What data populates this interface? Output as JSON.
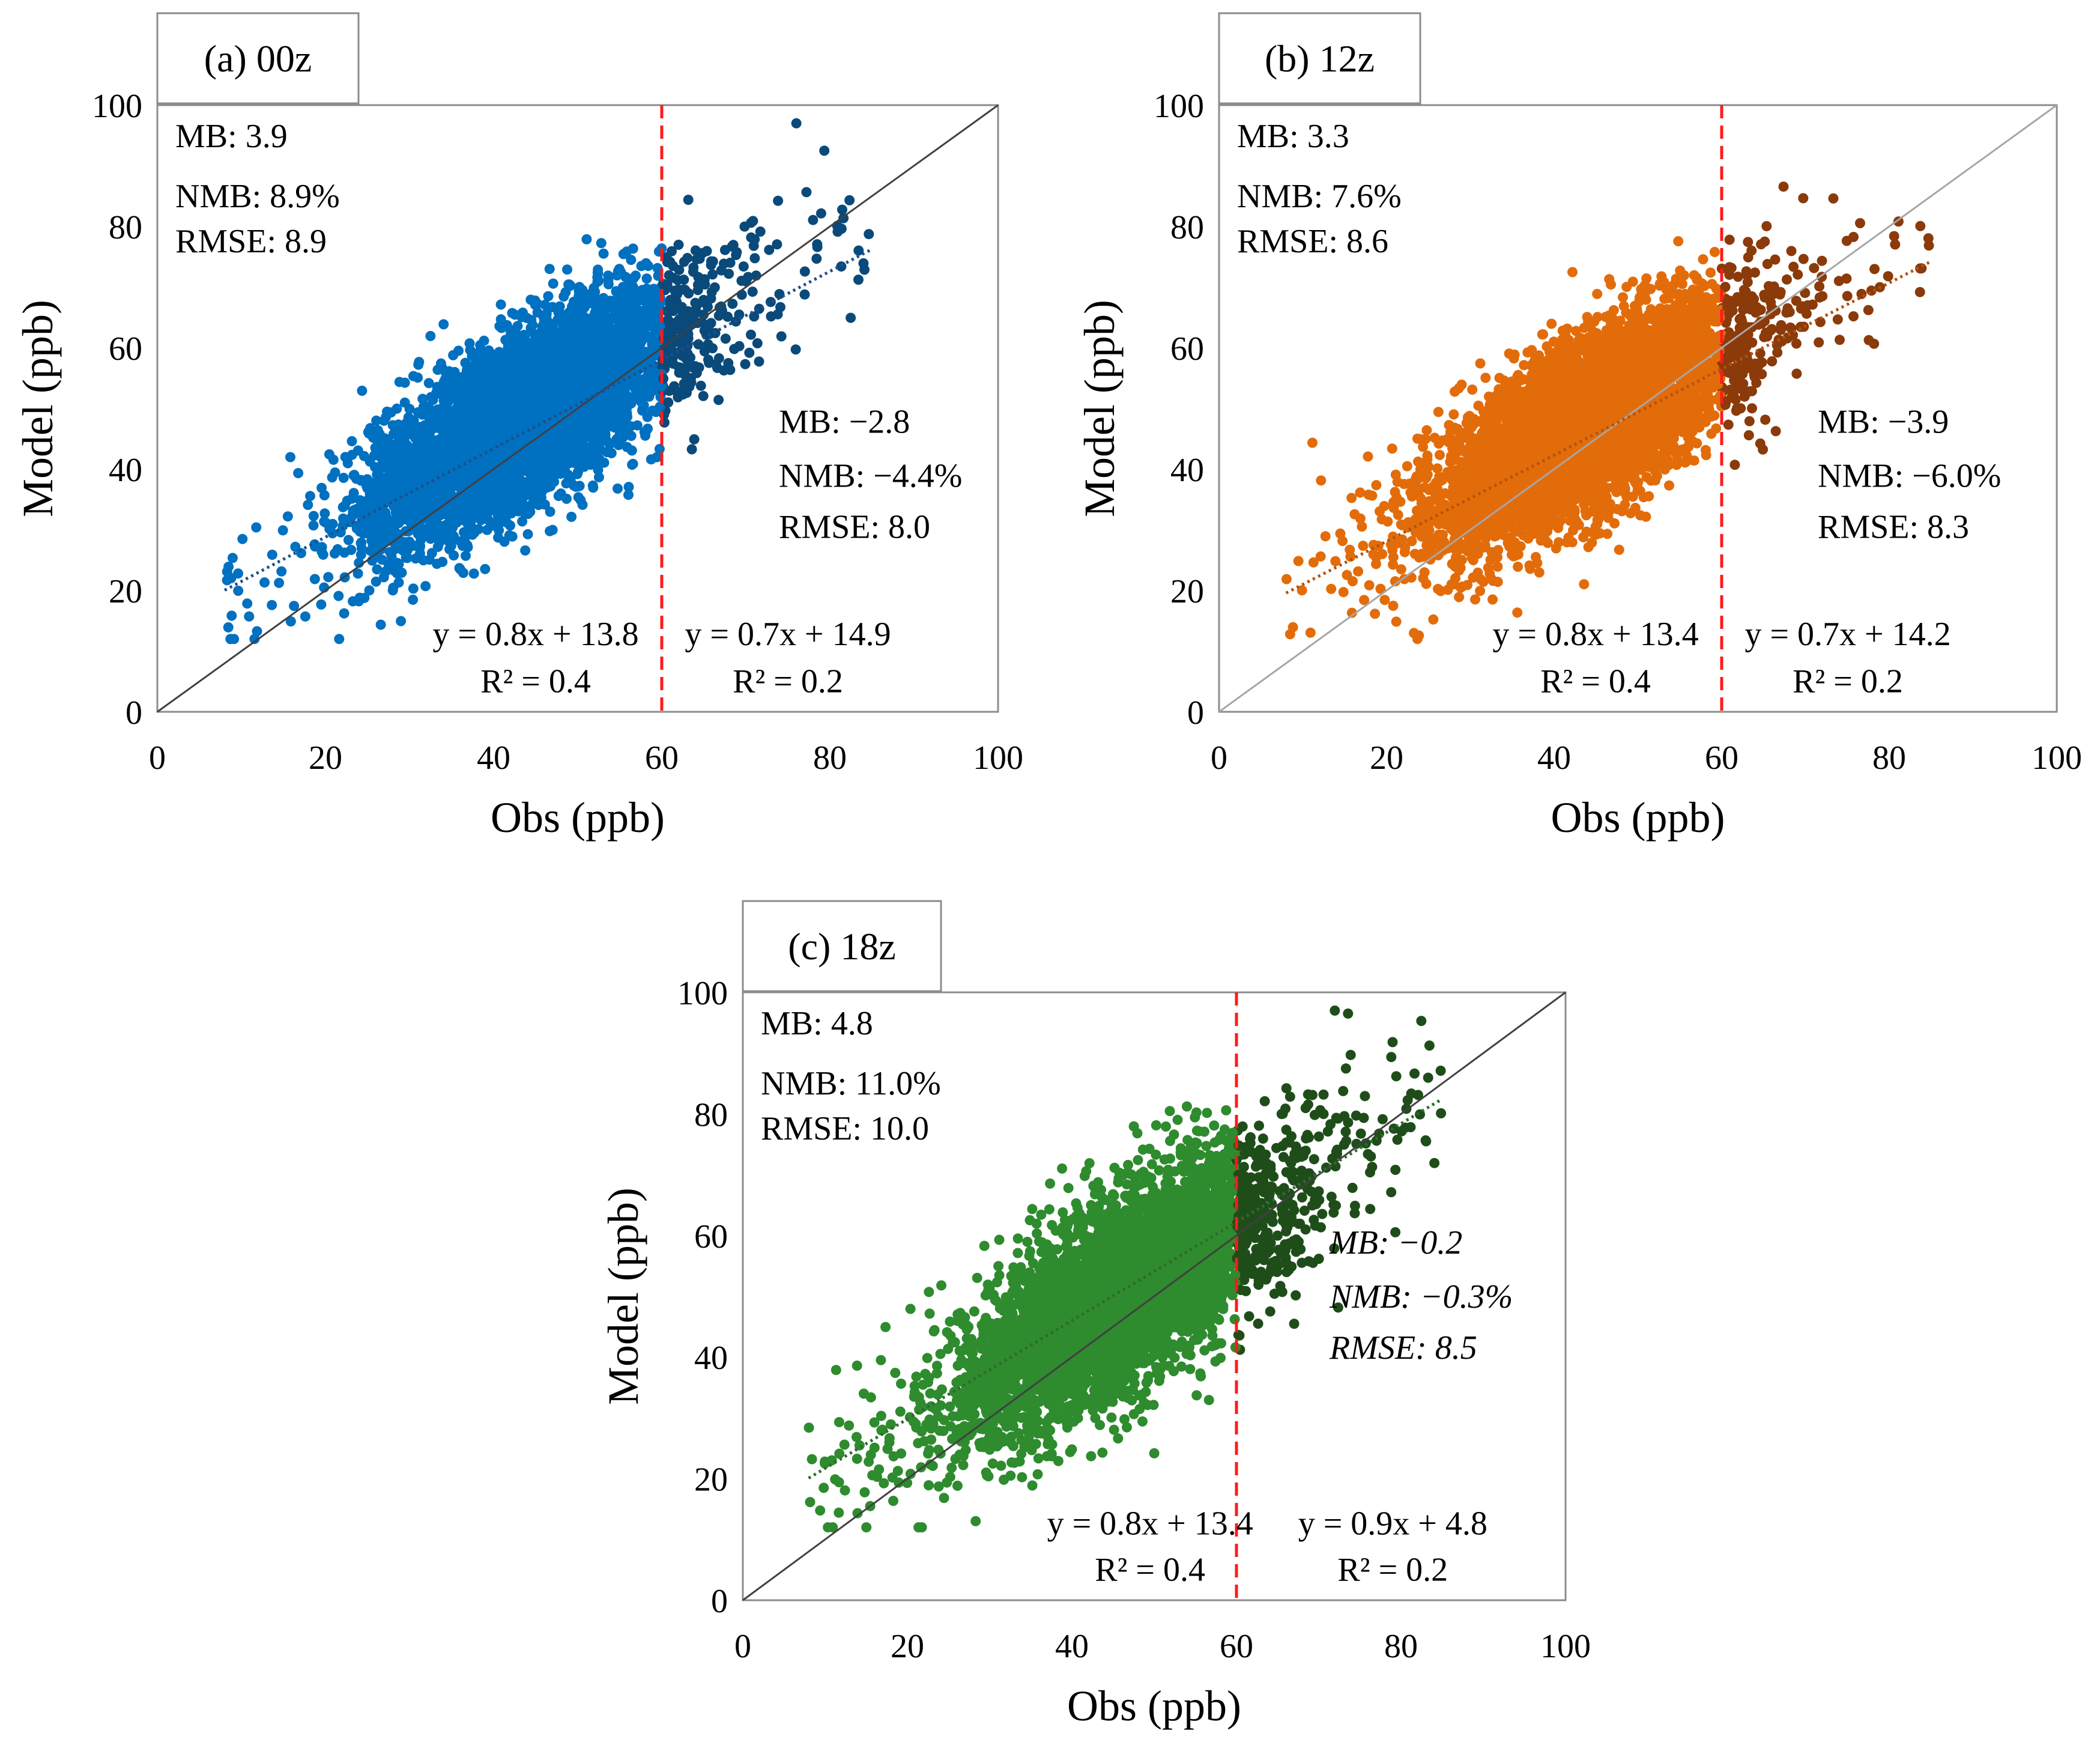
{
  "chart_data": [
    {
      "type": "scatter",
      "panel_label": "(a) 00z",
      "xlabel": "Obs (ppb)",
      "ylabel": "Model (ppb)",
      "xlim": [
        0,
        100
      ],
      "ylim": [
        0,
        100
      ],
      "xticks": [
        0,
        20,
        40,
        60,
        80,
        100
      ],
      "yticks": [
        0,
        20,
        40,
        60,
        80,
        100
      ],
      "threshold_x": 60,
      "colors": {
        "low": "#0070C0",
        "high": "#0A4A7A",
        "trend": "#1F4E8C"
      },
      "stats_all": {
        "mb": "MB:  3.9",
        "nmb": "NMB:  8.9%",
        "rmse": "RMSE:  8.9"
      },
      "stats_high": {
        "mb": "MB:  −2.8",
        "nmb": "NMB:  −4.4%",
        "rmse": "RMSE:  8.0"
      },
      "fit_low": {
        "equation": "y = 0.8x + 13.8",
        "r2": "R² = 0.4",
        "slope": 0.8,
        "intercept": 13.8
      },
      "fit_high": {
        "equation": "y = 0.7x + 14.9",
        "r2": "R² = 0.2",
        "slope": 0.7,
        "intercept": 14.9
      },
      "trend_line": {
        "x_range": [
          8,
          85
        ],
        "slope": 0.73,
        "intercept": 14.2
      },
      "cloud": {
        "n": 5200,
        "x_mean": 44,
        "x_sd": 9,
        "x_min": 8,
        "x_max": 85,
        "slope": 0.78,
        "intercept": 14.5,
        "noise_sd": 7,
        "seed": 11
      }
    },
    {
      "type": "scatter",
      "panel_label": "(b) 12z",
      "xlabel": "Obs (ppb)",
      "ylabel": "Model (ppb)",
      "xlim": [
        0,
        100
      ],
      "ylim": [
        0,
        100
      ],
      "xticks": [
        0,
        20,
        40,
        60,
        80,
        100
      ],
      "yticks": [
        0,
        20,
        40,
        60,
        80,
        100
      ],
      "threshold_x": 60,
      "colors": {
        "low": "#E36C0A",
        "high": "#8B3A0A",
        "trend": "#B4520F"
      },
      "stats_all": {
        "mb": "MB:  3.3",
        "nmb": "NMB:  7.6%",
        "rmse": "RMSE:  8.6"
      },
      "stats_high": {
        "mb": "MB:  −3.9",
        "nmb": "NMB:  −6.0%",
        "rmse": "RMSE:  8.3"
      },
      "fit_low": {
        "equation": "y = 0.8x + 13.4",
        "r2": "R² = 0.4",
        "slope": 0.8,
        "intercept": 13.4
      },
      "fit_high": {
        "equation": "y = 0.7x + 14.2",
        "r2": "R² = 0.2",
        "slope": 0.7,
        "intercept": 14.2
      },
      "trend_line": {
        "x_range": [
          8,
          85
        ],
        "slope": 0.71,
        "intercept": 13.9
      },
      "cloud": {
        "n": 5200,
        "x_mean": 44,
        "x_sd": 9,
        "x_min": 8,
        "x_max": 85,
        "slope": 0.76,
        "intercept": 14.0,
        "noise_sd": 7,
        "seed": 23
      }
    },
    {
      "type": "scatter",
      "panel_label": "(c) 18z",
      "xlabel": "Obs (ppb)",
      "ylabel": "Model (ppb)",
      "xlim": [
        0,
        100
      ],
      "ylim": [
        0,
        100
      ],
      "xticks": [
        0,
        20,
        40,
        60,
        80,
        100
      ],
      "yticks": [
        0,
        20,
        40,
        60,
        80,
        100
      ],
      "threshold_x": 60,
      "colors": {
        "low": "#2E8B2E",
        "high": "#1F4D1A",
        "trend": "#2E6B2E"
      },
      "stats_all": {
        "mb": "MB:  4.8",
        "nmb": "NMB:  11.0%",
        "rmse": "RMSE:  10.0"
      },
      "stats_high": {
        "mb": "MB:  −0.2",
        "nmb": "NMB:  −0.3%",
        "rmse": "RMSE:  8.5"
      },
      "fit_low": {
        "equation": "y = 0.8x + 13.4",
        "r2": "R² = 0.4",
        "slope": 0.8,
        "intercept": 13.4
      },
      "fit_high": {
        "equation": "y = 0.9x + 4.8",
        "r2": "R² = 0.2",
        "slope": 0.9,
        "intercept": 4.8
      },
      "trend_line": {
        "x_range": [
          8,
          85
        ],
        "slope": 0.81,
        "intercept": 13.6
      },
      "cloud": {
        "n": 4800,
        "x_mean": 46,
        "x_sd": 10,
        "x_min": 8,
        "x_max": 85,
        "slope": 0.82,
        "intercept": 13.0,
        "noise_sd": 8,
        "seed": 37
      }
    }
  ]
}
